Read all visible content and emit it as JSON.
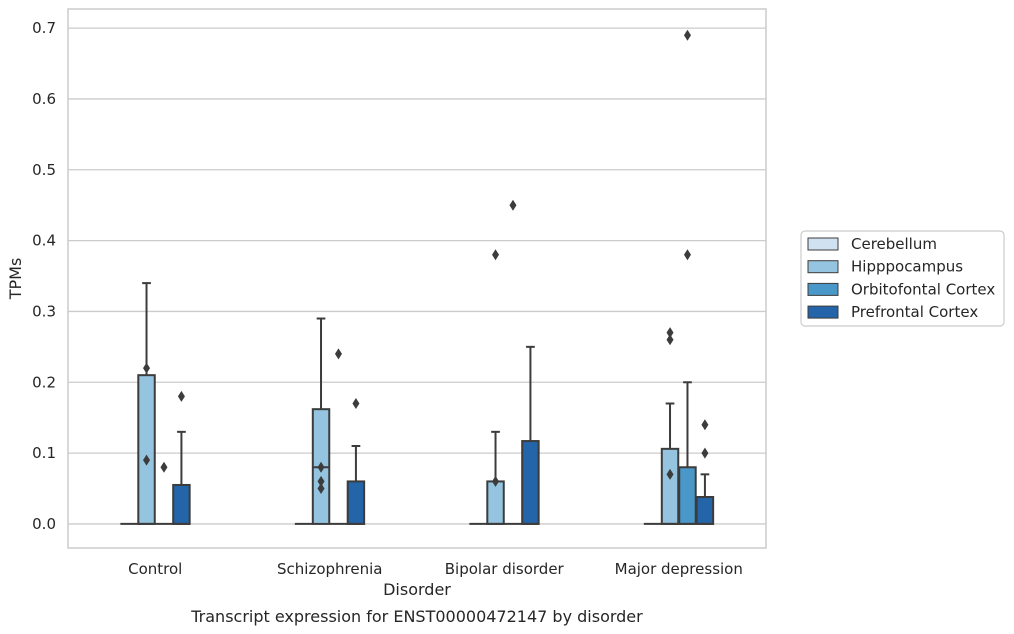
{
  "chart_data": {
    "type": "box",
    "title": "Transcript expression for ENST00000472147 by disorder",
    "xlabel": "Disorder",
    "ylabel": "TPMs",
    "ylim": [
      -0.034,
      0.727
    ],
    "yticks": [
      0.0,
      0.1,
      0.2,
      0.3,
      0.4,
      0.5,
      0.6,
      0.7
    ],
    "ytick_labels": [
      "0.0",
      "0.1",
      "0.2",
      "0.3",
      "0.4",
      "0.5",
      "0.6",
      "0.7"
    ],
    "categories": [
      "Control",
      "Schizophrenia",
      "Bipolar disorder",
      "Major depression"
    ],
    "grid": "horizontal",
    "legend_position": "right",
    "series": [
      {
        "name": "Cerebellum",
        "color": "#d0e1f2",
        "boxes": [
          {
            "q1": 0,
            "median": 0,
            "q3": 0,
            "whislo": 0,
            "whishi": 0,
            "fliers": []
          },
          {
            "q1": 0,
            "median": 0,
            "q3": 0,
            "whislo": 0,
            "whishi": 0,
            "fliers": []
          },
          {
            "q1": 0,
            "median": 0,
            "q3": 0,
            "whislo": 0,
            "whishi": 0,
            "fliers": []
          },
          {
            "q1": 0,
            "median": 0,
            "q3": 0,
            "whislo": 0,
            "whishi": 0,
            "fliers": []
          }
        ]
      },
      {
        "name": "Hipppocampus",
        "color": "#94c4df",
        "boxes": [
          {
            "q1": 0,
            "median": 0,
            "q3": 0.21,
            "whislo": 0,
            "whishi": 0.34,
            "fliers": [
              0.22,
              0.09
            ]
          },
          {
            "q1": 0,
            "median": 0.08,
            "q3": 0.162,
            "whislo": 0,
            "whishi": 0.29,
            "fliers": [
              0.08,
              0.06,
              0.05
            ]
          },
          {
            "q1": 0,
            "median": 0,
            "q3": 0.06,
            "whislo": 0,
            "whishi": 0.13,
            "fliers": [
              0.38,
              0.06
            ]
          },
          {
            "q1": 0,
            "median": 0,
            "q3": 0.106,
            "whislo": 0,
            "whishi": 0.17,
            "fliers": [
              0.26,
              0.27,
              0.07
            ]
          }
        ]
      },
      {
        "name": "Orbitofontal Cortex",
        "color": "#4a98c9",
        "boxes": [
          {
            "q1": 0,
            "median": 0,
            "q3": 0,
            "whislo": 0,
            "whishi": 0,
            "fliers": [
              0.08
            ]
          },
          {
            "q1": 0,
            "median": 0,
            "q3": 0,
            "whislo": 0,
            "whishi": 0,
            "fliers": [
              0.24
            ]
          },
          {
            "q1": 0,
            "median": 0,
            "q3": 0,
            "whislo": 0,
            "whishi": 0,
            "fliers": [
              0.45
            ]
          },
          {
            "q1": 0,
            "median": 0,
            "q3": 0.08,
            "whislo": 0,
            "whishi": 0.2,
            "fliers": [
              0.69,
              0.38
            ]
          }
        ]
      },
      {
        "name": "Prefrontal Cortex",
        "color": "#2464a8",
        "boxes": [
          {
            "q1": 0,
            "median": 0,
            "q3": 0.055,
            "whislo": 0,
            "whishi": 0.13,
            "fliers": [
              0.18
            ]
          },
          {
            "q1": 0,
            "median": 0,
            "q3": 0.06,
            "whislo": 0,
            "whishi": 0.11,
            "fliers": [
              0.17
            ]
          },
          {
            "q1": 0,
            "median": 0,
            "q3": 0.117,
            "whislo": 0,
            "whishi": 0.25,
            "fliers": []
          },
          {
            "q1": 0,
            "median": 0,
            "q3": 0.038,
            "whislo": 0,
            "whishi": 0.07,
            "fliers": [
              0.14,
              0.1
            ]
          }
        ]
      }
    ]
  }
}
